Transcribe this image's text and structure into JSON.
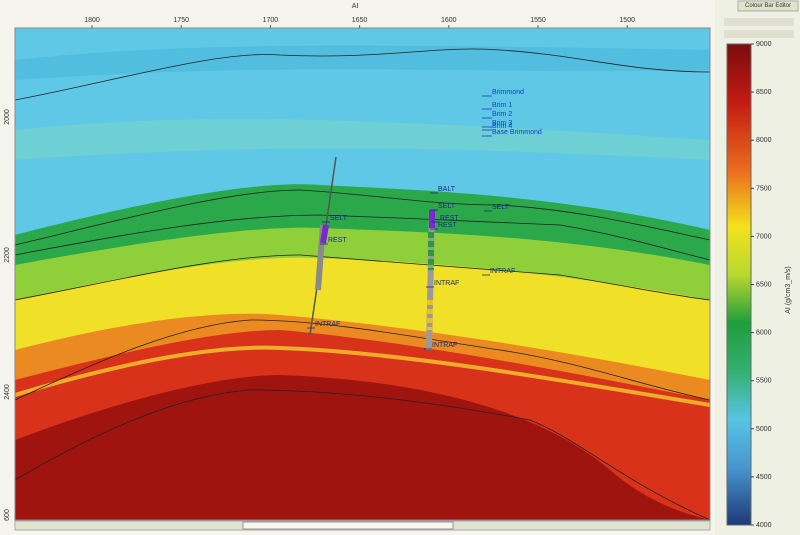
{
  "window": {
    "title": "AI",
    "panel_title": "Colour Bar Editor"
  },
  "section": {
    "x_ticks": [
      "1800",
      "1750",
      "1700",
      "1650",
      "1600",
      "1550",
      "1500"
    ],
    "y_ticks": [
      "2000",
      "2200",
      "2400",
      "600"
    ],
    "horizon_labels": [
      "Brimmond",
      "Brim 1",
      "Brim 2",
      "Brim 3",
      "Brim 4",
      "Base Brimmond"
    ],
    "well_markers": [
      "BALT",
      "SELT",
      "REST",
      "REST",
      "SELT",
      "SELT",
      "REST",
      "INTRAF",
      "INTRAF",
      "INTRAF",
      "INTRAF"
    ]
  },
  "colour_bar": {
    "label": "AI (g/cm3_m/s)",
    "ticks": [
      "9000",
      "8500",
      "8000",
      "7500",
      "7000",
      "6500",
      "6000",
      "5500",
      "5000",
      "4500",
      "4000"
    ]
  }
}
